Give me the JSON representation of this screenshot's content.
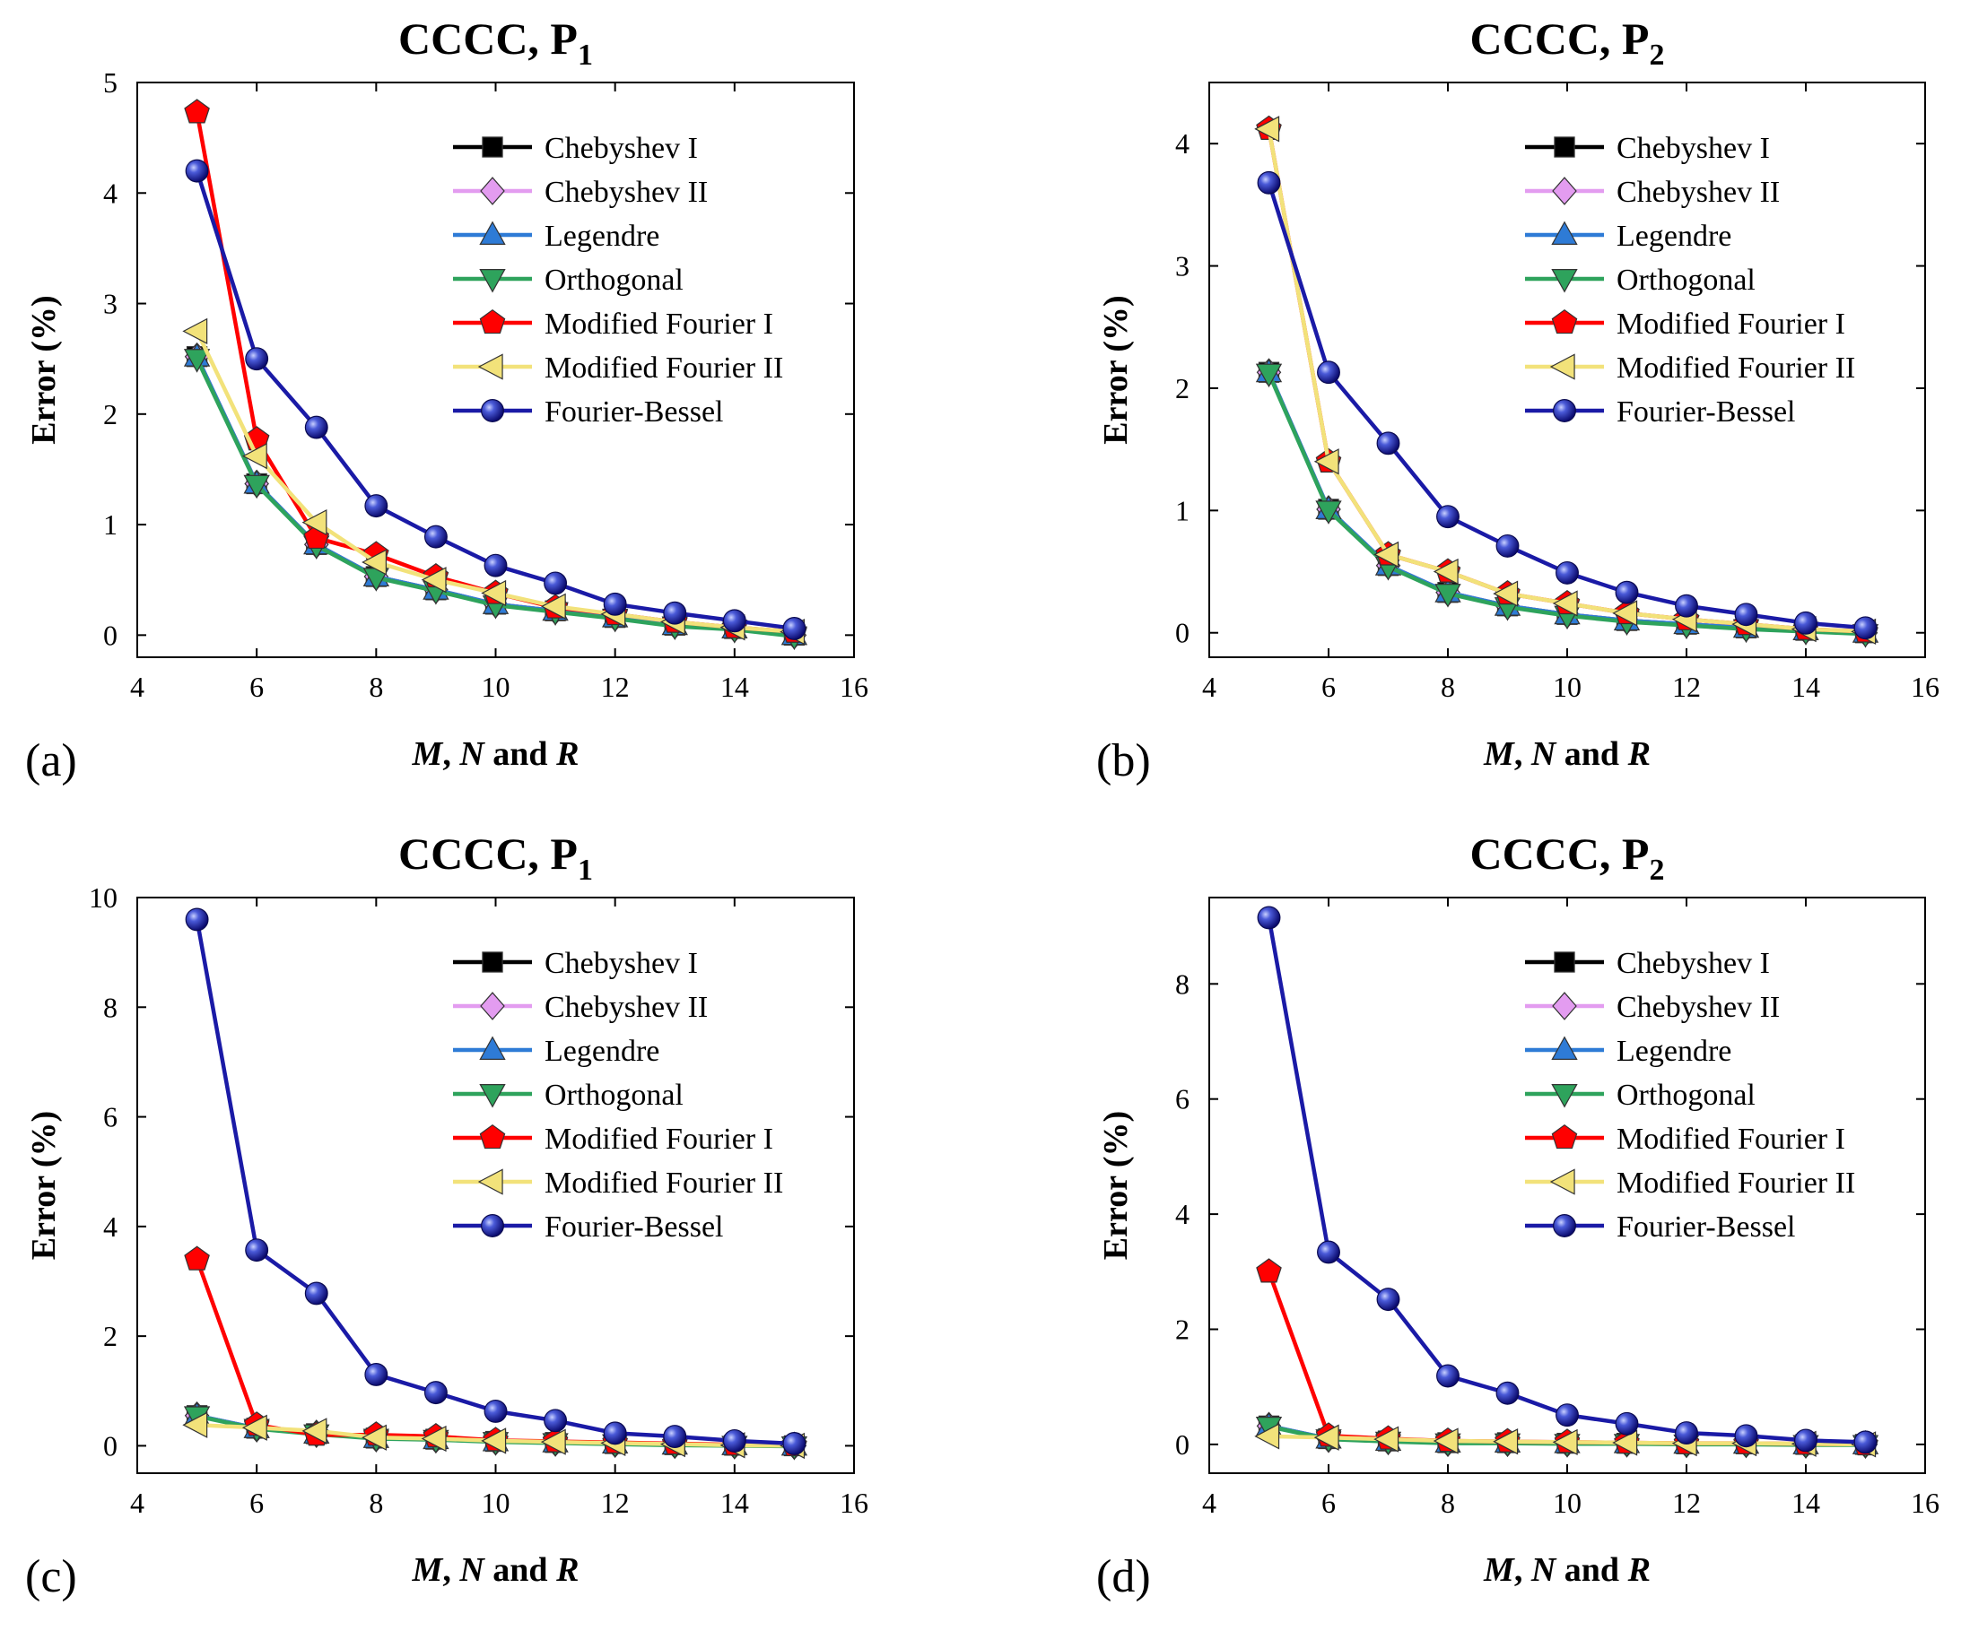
{
  "figure": {
    "legend_labels": [
      "Chebyshev I",
      "Chebyshev II",
      "Legendre",
      "Orthogonal",
      "Modified Fourier I",
      "Modified Fourier II",
      "Fourier-Bessel"
    ]
  },
  "chart_data": [
    {
      "panel": "(a)",
      "type": "line",
      "title": "CCCC, P",
      "title_subscript": "1",
      "xlabel_parts": [
        "M",
        ", ",
        "N",
        " and ",
        "R"
      ],
      "ylabel": "Error (%)",
      "xlim": [
        4,
        16
      ],
      "ylim": [
        -0.2,
        5
      ],
      "xticks": [
        4,
        6,
        8,
        10,
        12,
        14,
        16
      ],
      "yticks": [
        0,
        1,
        2,
        3,
        4,
        5
      ],
      "legend_position": "top-right",
      "x": [
        5,
        6,
        7,
        8,
        9,
        10,
        11,
        12,
        13,
        14,
        15
      ],
      "series": [
        {
          "name": "Chebyshev I",
          "color": "#000000",
          "marker": "square",
          "values": [
            2.52,
            1.37,
            0.82,
            0.53,
            0.41,
            0.28,
            0.22,
            0.16,
            0.09,
            0.06,
            0.0
          ]
        },
        {
          "name": "Chebyshev II",
          "color": "#e39cf0",
          "marker": "diamond",
          "values": [
            2.52,
            1.37,
            0.82,
            0.53,
            0.41,
            0.28,
            0.22,
            0.16,
            0.09,
            0.06,
            0.0
          ]
        },
        {
          "name": "Legendre",
          "color": "#2e7bd6",
          "marker": "triangle-up",
          "values": [
            2.52,
            1.37,
            0.82,
            0.53,
            0.41,
            0.28,
            0.22,
            0.16,
            0.09,
            0.06,
            0.0
          ]
        },
        {
          "name": "Orthogonal",
          "color": "#2ea35c",
          "marker": "triangle-down",
          "values": [
            2.5,
            1.36,
            0.81,
            0.52,
            0.4,
            0.27,
            0.21,
            0.15,
            0.08,
            0.05,
            -0.01
          ]
        },
        {
          "name": "Modified Fourier I",
          "color": "#ff0000",
          "marker": "pentagon",
          "values": [
            4.73,
            1.77,
            0.88,
            0.73,
            0.53,
            0.38,
            0.25,
            0.19,
            0.12,
            0.07,
            0.03
          ]
        },
        {
          "name": "Modified Fourier II",
          "color": "#f2e27a",
          "marker": "triangle-left",
          "values": [
            2.75,
            1.62,
            1.02,
            0.66,
            0.5,
            0.38,
            0.26,
            0.19,
            0.12,
            0.07,
            0.03
          ]
        },
        {
          "name": "Fourier-Bessel",
          "color": "#1a1aa6",
          "marker": "sphere",
          "values": [
            4.2,
            2.5,
            1.88,
            1.17,
            0.89,
            0.63,
            0.47,
            0.28,
            0.2,
            0.13,
            0.06
          ]
        }
      ]
    },
    {
      "panel": "(b)",
      "type": "line",
      "title": "CCCC, P",
      "title_subscript": "2",
      "xlabel_parts": [
        "M",
        ", ",
        "N",
        " and ",
        "R"
      ],
      "ylabel": "Error (%)",
      "xlim": [
        4,
        16
      ],
      "ylim": [
        -0.2,
        4.5
      ],
      "xticks": [
        4,
        6,
        8,
        10,
        12,
        14,
        16
      ],
      "yticks": [
        0,
        1,
        2,
        3,
        4
      ],
      "legend_position": "top-right",
      "x": [
        5,
        6,
        7,
        8,
        9,
        10,
        11,
        12,
        13,
        14,
        15
      ],
      "series": [
        {
          "name": "Chebyshev I",
          "color": "#000000",
          "marker": "square",
          "values": [
            2.13,
            1.01,
            0.55,
            0.33,
            0.22,
            0.15,
            0.1,
            0.07,
            0.04,
            0.02,
            0.0
          ]
        },
        {
          "name": "Chebyshev II",
          "color": "#e39cf0",
          "marker": "diamond",
          "values": [
            2.13,
            1.01,
            0.55,
            0.33,
            0.22,
            0.15,
            0.1,
            0.07,
            0.04,
            0.02,
            0.0
          ]
        },
        {
          "name": "Legendre",
          "color": "#2e7bd6",
          "marker": "triangle-up",
          "values": [
            2.13,
            1.01,
            0.55,
            0.33,
            0.22,
            0.15,
            0.1,
            0.07,
            0.04,
            0.02,
            0.0
          ]
        },
        {
          "name": "Orthogonal",
          "color": "#2ea35c",
          "marker": "triangle-down",
          "values": [
            2.12,
            1.0,
            0.54,
            0.32,
            0.21,
            0.14,
            0.09,
            0.06,
            0.03,
            0.01,
            -0.01
          ]
        },
        {
          "name": "Modified Fourier I",
          "color": "#ff0000",
          "marker": "pentagon",
          "values": [
            4.12,
            1.4,
            0.64,
            0.5,
            0.32,
            0.24,
            0.16,
            0.11,
            0.07,
            0.03,
            0.01
          ]
        },
        {
          "name": "Modified Fourier II",
          "color": "#f2e27a",
          "marker": "triangle-left",
          "values": [
            4.12,
            1.4,
            0.64,
            0.5,
            0.32,
            0.24,
            0.16,
            0.11,
            0.07,
            0.03,
            0.01
          ]
        },
        {
          "name": "Fourier-Bessel",
          "color": "#1a1aa6",
          "marker": "sphere",
          "values": [
            3.68,
            2.13,
            1.55,
            0.95,
            0.71,
            0.49,
            0.33,
            0.22,
            0.15,
            0.08,
            0.04
          ]
        }
      ]
    },
    {
      "panel": "(c)",
      "type": "line",
      "title": "CCCC, P",
      "title_subscript": "1",
      "xlabel_parts": [
        "M",
        ", ",
        "N",
        " and ",
        "R"
      ],
      "ylabel": "Error (%)",
      "xlim": [
        4,
        16
      ],
      "ylim": [
        -0.5,
        10
      ],
      "xticks": [
        4,
        6,
        8,
        10,
        12,
        14,
        16
      ],
      "yticks": [
        0,
        2,
        4,
        6,
        8,
        10
      ],
      "legend_position": "top-right",
      "x": [
        5,
        6,
        7,
        8,
        9,
        10,
        11,
        12,
        13,
        14,
        15
      ],
      "series": [
        {
          "name": "Chebyshev I",
          "color": "#000000",
          "marker": "square",
          "values": [
            0.55,
            0.32,
            0.22,
            0.14,
            0.12,
            0.08,
            0.06,
            0.04,
            0.02,
            0.01,
            0.0
          ]
        },
        {
          "name": "Chebyshev II",
          "color": "#e39cf0",
          "marker": "diamond",
          "values": [
            0.55,
            0.32,
            0.22,
            0.14,
            0.12,
            0.08,
            0.06,
            0.04,
            0.02,
            0.01,
            0.0
          ]
        },
        {
          "name": "Legendre",
          "color": "#2e7bd6",
          "marker": "triangle-up",
          "values": [
            0.55,
            0.32,
            0.22,
            0.14,
            0.12,
            0.08,
            0.06,
            0.04,
            0.02,
            0.01,
            0.0
          ]
        },
        {
          "name": "Orthogonal",
          "color": "#2ea35c",
          "marker": "triangle-down",
          "values": [
            0.54,
            0.31,
            0.21,
            0.13,
            0.11,
            0.07,
            0.05,
            0.03,
            0.01,
            0.0,
            -0.01
          ]
        },
        {
          "name": "Modified Fourier I",
          "color": "#ff0000",
          "marker": "pentagon",
          "values": [
            3.4,
            0.38,
            0.2,
            0.2,
            0.17,
            0.1,
            0.08,
            0.06,
            0.04,
            0.02,
            0.01
          ]
        },
        {
          "name": "Modified Fourier II",
          "color": "#f2e27a",
          "marker": "triangle-left",
          "values": [
            0.38,
            0.33,
            0.27,
            0.15,
            0.13,
            0.09,
            0.07,
            0.05,
            0.03,
            0.01,
            0.0
          ]
        },
        {
          "name": "Fourier-Bessel",
          "color": "#1a1aa6",
          "marker": "sphere",
          "values": [
            9.6,
            3.57,
            2.78,
            1.3,
            0.97,
            0.63,
            0.46,
            0.23,
            0.17,
            0.09,
            0.04
          ]
        }
      ]
    },
    {
      "panel": "(d)",
      "type": "line",
      "title": "CCCC, P",
      "title_subscript": "2",
      "xlabel_parts": [
        "M",
        ", ",
        "N",
        " and ",
        "R"
      ],
      "ylabel": "Error (%)",
      "xlim": [
        4,
        16
      ],
      "ylim": [
        -0.5,
        9.5
      ],
      "xticks": [
        4,
        6,
        8,
        10,
        12,
        14,
        16
      ],
      "yticks": [
        0,
        2,
        4,
        6,
        8
      ],
      "legend_position": "top-right",
      "x": [
        5,
        6,
        7,
        8,
        9,
        10,
        11,
        12,
        13,
        14,
        15
      ],
      "series": [
        {
          "name": "Chebyshev I",
          "color": "#000000",
          "marker": "square",
          "values": [
            0.32,
            0.1,
            0.06,
            0.03,
            0.03,
            0.02,
            0.02,
            0.01,
            0.01,
            0.0,
            0.0
          ]
        },
        {
          "name": "Chebyshev II",
          "color": "#e39cf0",
          "marker": "diamond",
          "values": [
            0.32,
            0.1,
            0.06,
            0.03,
            0.03,
            0.02,
            0.02,
            0.01,
            0.01,
            0.0,
            0.0
          ]
        },
        {
          "name": "Legendre",
          "color": "#2e7bd6",
          "marker": "triangle-up",
          "values": [
            0.32,
            0.1,
            0.06,
            0.03,
            0.03,
            0.02,
            0.02,
            0.01,
            0.01,
            0.0,
            0.0
          ]
        },
        {
          "name": "Orthogonal",
          "color": "#2ea35c",
          "marker": "triangle-down",
          "values": [
            0.31,
            0.09,
            0.05,
            0.02,
            0.02,
            0.01,
            0.01,
            0.0,
            0.0,
            -0.01,
            -0.01
          ]
        },
        {
          "name": "Modified Fourier I",
          "color": "#ff0000",
          "marker": "pentagon",
          "values": [
            3.0,
            0.15,
            0.1,
            0.06,
            0.05,
            0.04,
            0.03,
            0.02,
            0.02,
            0.01,
            0.0
          ]
        },
        {
          "name": "Modified Fourier II",
          "color": "#f2e27a",
          "marker": "triangle-left",
          "values": [
            0.14,
            0.12,
            0.09,
            0.06,
            0.05,
            0.04,
            0.03,
            0.02,
            0.02,
            0.01,
            0.0
          ]
        },
        {
          "name": "Fourier-Bessel",
          "color": "#1a1aa6",
          "marker": "sphere",
          "values": [
            9.15,
            3.34,
            2.52,
            1.19,
            0.89,
            0.51,
            0.36,
            0.2,
            0.15,
            0.07,
            0.04
          ]
        }
      ]
    }
  ]
}
